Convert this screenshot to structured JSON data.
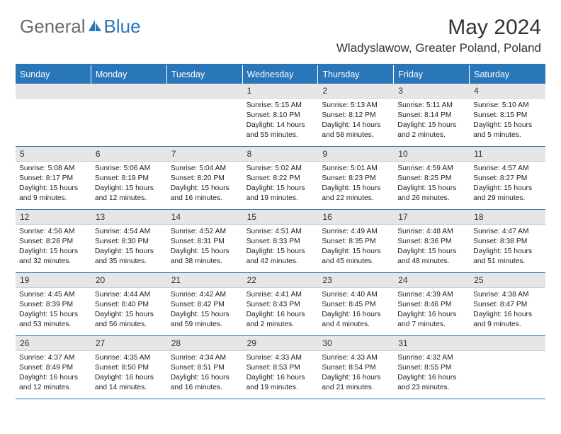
{
  "brand": {
    "part1": "General",
    "part2": "Blue"
  },
  "title": "May 2024",
  "location": "Wladyslawow, Greater Poland, Poland",
  "colors": {
    "accent": "#2976b8",
    "dayHeaderBg": "#e6e6e6",
    "text": "#333333",
    "bodyText": "#222222",
    "logoGray": "#6b6b6b"
  },
  "weekdays": [
    "Sunday",
    "Monday",
    "Tuesday",
    "Wednesday",
    "Thursday",
    "Friday",
    "Saturday"
  ],
  "weeks": [
    [
      {
        "n": ""
      },
      {
        "n": ""
      },
      {
        "n": ""
      },
      {
        "n": "1",
        "sr": "5:15 AM",
        "ss": "8:10 PM",
        "dl": "14 hours and 55 minutes."
      },
      {
        "n": "2",
        "sr": "5:13 AM",
        "ss": "8:12 PM",
        "dl": "14 hours and 58 minutes."
      },
      {
        "n": "3",
        "sr": "5:11 AM",
        "ss": "8:14 PM",
        "dl": "15 hours and 2 minutes."
      },
      {
        "n": "4",
        "sr": "5:10 AM",
        "ss": "8:15 PM",
        "dl": "15 hours and 5 minutes."
      }
    ],
    [
      {
        "n": "5",
        "sr": "5:08 AM",
        "ss": "8:17 PM",
        "dl": "15 hours and 9 minutes."
      },
      {
        "n": "6",
        "sr": "5:06 AM",
        "ss": "8:19 PM",
        "dl": "15 hours and 12 minutes."
      },
      {
        "n": "7",
        "sr": "5:04 AM",
        "ss": "8:20 PM",
        "dl": "15 hours and 16 minutes."
      },
      {
        "n": "8",
        "sr": "5:02 AM",
        "ss": "8:22 PM",
        "dl": "15 hours and 19 minutes."
      },
      {
        "n": "9",
        "sr": "5:01 AM",
        "ss": "8:23 PM",
        "dl": "15 hours and 22 minutes."
      },
      {
        "n": "10",
        "sr": "4:59 AM",
        "ss": "8:25 PM",
        "dl": "15 hours and 26 minutes."
      },
      {
        "n": "11",
        "sr": "4:57 AM",
        "ss": "8:27 PM",
        "dl": "15 hours and 29 minutes."
      }
    ],
    [
      {
        "n": "12",
        "sr": "4:56 AM",
        "ss": "8:28 PM",
        "dl": "15 hours and 32 minutes."
      },
      {
        "n": "13",
        "sr": "4:54 AM",
        "ss": "8:30 PM",
        "dl": "15 hours and 35 minutes."
      },
      {
        "n": "14",
        "sr": "4:52 AM",
        "ss": "8:31 PM",
        "dl": "15 hours and 38 minutes."
      },
      {
        "n": "15",
        "sr": "4:51 AM",
        "ss": "8:33 PM",
        "dl": "15 hours and 42 minutes."
      },
      {
        "n": "16",
        "sr": "4:49 AM",
        "ss": "8:35 PM",
        "dl": "15 hours and 45 minutes."
      },
      {
        "n": "17",
        "sr": "4:48 AM",
        "ss": "8:36 PM",
        "dl": "15 hours and 48 minutes."
      },
      {
        "n": "18",
        "sr": "4:47 AM",
        "ss": "8:38 PM",
        "dl": "15 hours and 51 minutes."
      }
    ],
    [
      {
        "n": "19",
        "sr": "4:45 AM",
        "ss": "8:39 PM",
        "dl": "15 hours and 53 minutes."
      },
      {
        "n": "20",
        "sr": "4:44 AM",
        "ss": "8:40 PM",
        "dl": "15 hours and 56 minutes."
      },
      {
        "n": "21",
        "sr": "4:42 AM",
        "ss": "8:42 PM",
        "dl": "15 hours and 59 minutes."
      },
      {
        "n": "22",
        "sr": "4:41 AM",
        "ss": "8:43 PM",
        "dl": "16 hours and 2 minutes."
      },
      {
        "n": "23",
        "sr": "4:40 AM",
        "ss": "8:45 PM",
        "dl": "16 hours and 4 minutes."
      },
      {
        "n": "24",
        "sr": "4:39 AM",
        "ss": "8:46 PM",
        "dl": "16 hours and 7 minutes."
      },
      {
        "n": "25",
        "sr": "4:38 AM",
        "ss": "8:47 PM",
        "dl": "16 hours and 9 minutes."
      }
    ],
    [
      {
        "n": "26",
        "sr": "4:37 AM",
        "ss": "8:49 PM",
        "dl": "16 hours and 12 minutes."
      },
      {
        "n": "27",
        "sr": "4:35 AM",
        "ss": "8:50 PM",
        "dl": "16 hours and 14 minutes."
      },
      {
        "n": "28",
        "sr": "4:34 AM",
        "ss": "8:51 PM",
        "dl": "16 hours and 16 minutes."
      },
      {
        "n": "29",
        "sr": "4:33 AM",
        "ss": "8:53 PM",
        "dl": "16 hours and 19 minutes."
      },
      {
        "n": "30",
        "sr": "4:33 AM",
        "ss": "8:54 PM",
        "dl": "16 hours and 21 minutes."
      },
      {
        "n": "31",
        "sr": "4:32 AM",
        "ss": "8:55 PM",
        "dl": "16 hours and 23 minutes."
      },
      {
        "n": ""
      }
    ]
  ],
  "labels": {
    "sunrise": "Sunrise:",
    "sunset": "Sunset:",
    "daylight": "Daylight:"
  }
}
